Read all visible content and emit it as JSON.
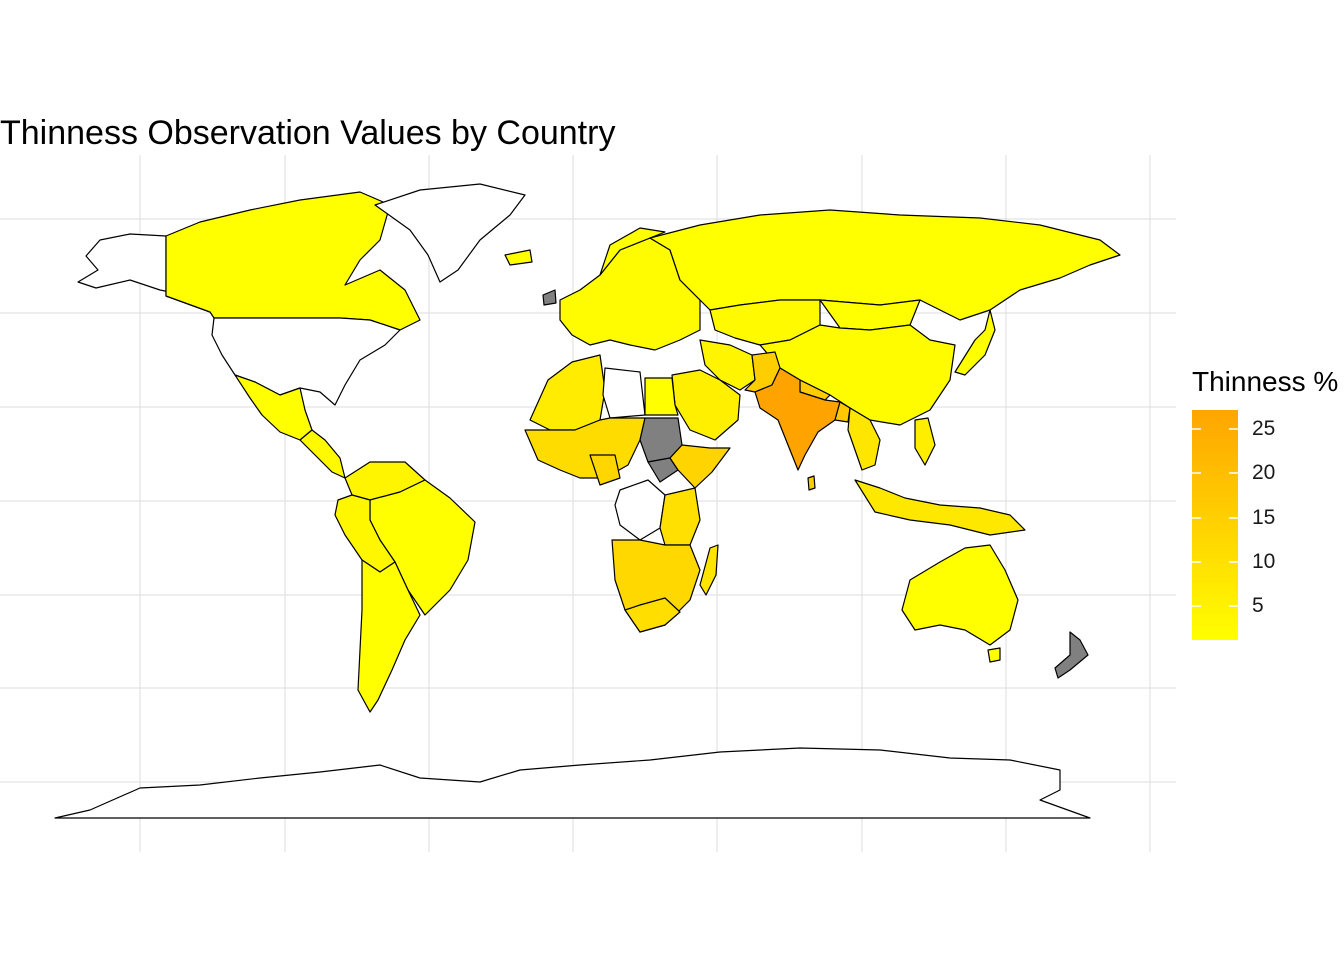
{
  "title": "Thinness Observation Values by Country",
  "legend": {
    "title": "Thinness %",
    "ticks": [
      "25",
      "20",
      "15",
      "10",
      "5"
    ],
    "range": [
      1,
      27
    ],
    "color_low": "#FFFF00",
    "color_high": "#FFA500",
    "missing_color": "#808080"
  },
  "chart_data": {
    "type": "choropleth",
    "title": "Thinness Observation Values by Country",
    "value_name": "Thinness %",
    "scale": {
      "min": 1,
      "max": 27,
      "low_color": "#FFFF00",
      "high_color": "#FFA500"
    },
    "regions": [
      {
        "name": "India",
        "value": 26
      },
      {
        "name": "Pakistan",
        "value": 16
      },
      {
        "name": "Bangladesh",
        "value": 17
      },
      {
        "name": "Nepal",
        "value": 16
      },
      {
        "name": "Sri Lanka",
        "value": 15
      },
      {
        "name": "Myanmar",
        "value": 8
      },
      {
        "name": "Canada",
        "value": 1
      },
      {
        "name": "Russia",
        "value": 2
      },
      {
        "name": "China",
        "value": 3
      },
      {
        "name": "Australia",
        "value": 1
      },
      {
        "name": "Brazil",
        "value": 3
      },
      {
        "name": "Mexico",
        "value": 2
      },
      {
        "name": "Argentina",
        "value": 2
      },
      {
        "name": "Nigeria",
        "value": 10
      },
      {
        "name": "Ethiopia",
        "value": 11
      },
      {
        "name": "Egypt",
        "value": 2
      },
      {
        "name": "South Africa",
        "value": 8
      },
      {
        "name": "Madagascar",
        "value": 7
      },
      {
        "name": "Indonesia",
        "value": 8
      },
      {
        "name": "Sudan",
        "value": null
      },
      {
        "name": "South Sudan",
        "value": null
      },
      {
        "name": "New Zealand",
        "value": null
      },
      {
        "name": "Ireland",
        "value": null
      }
    ]
  }
}
